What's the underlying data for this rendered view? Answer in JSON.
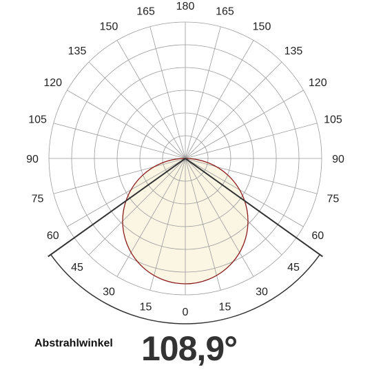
{
  "chart_data": {
    "type": "polar",
    "angle_labels": {
      "left": [
        "180",
        "165",
        "150",
        "135",
        "120",
        "105",
        "90",
        "75",
        "60",
        "45",
        "30",
        "15",
        "0"
      ],
      "right": [
        "165",
        "150",
        "135",
        "120",
        "105",
        "90",
        "75",
        "60",
        "45",
        "30",
        "15"
      ]
    },
    "angle_step_deg": 15,
    "rings": 6,
    "beam_angle_deg": 108.9,
    "beam_half_angle_deg": 54.45,
    "distribution": {
      "shape": "circle-through-origin",
      "fill": "#fbf5e4",
      "stroke": "#8b1a1a"
    }
  },
  "beam": {
    "caption": "Abstrahlwinkel",
    "value": "108,9°"
  },
  "colors": {
    "grid": "#9a9a9a",
    "beam_lines": "#333333",
    "curve": "#8b1a1a",
    "fill": "#fbf5e4"
  }
}
